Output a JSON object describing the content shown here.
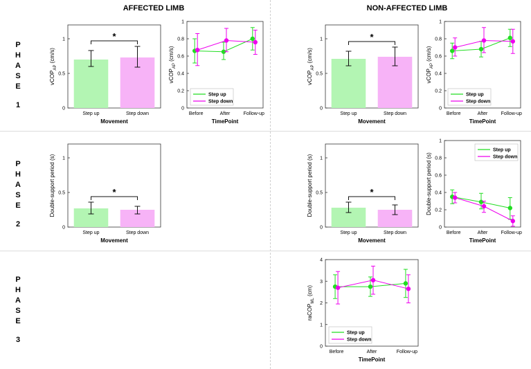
{
  "headers": {
    "affected": "AFFECTED LIMB",
    "non_affected": "NON-AFFECTED LIMB"
  },
  "phases": [
    {
      "letters": [
        "P",
        "H",
        "A",
        "S",
        "E"
      ],
      "number": "1"
    },
    {
      "letters": [
        "P",
        "H",
        "A",
        "S",
        "E"
      ],
      "number": "2"
    },
    {
      "letters": [
        "P",
        "H",
        "A",
        "S",
        "E"
      ],
      "number": "3"
    }
  ],
  "colors": {
    "green": "#22dd22",
    "magenta": "#ee00ee",
    "bar_green": "#b3f5b3",
    "bar_pink": "#f7b3f7"
  },
  "chart_data": [
    {
      "id": "p1-affected-bar",
      "type": "bar",
      "categories": [
        "Step up",
        "Step down"
      ],
      "values": [
        0.7,
        0.73
      ],
      "err_low": [
        0.6,
        0.59
      ],
      "err_high": [
        0.83,
        0.89
      ],
      "xlabel": "Movement",
      "ylabel_main": "vCOP",
      "ylabel_sub": "AP",
      "ylabel_unit": " (cm/s)",
      "ylim": [
        0,
        1.2
      ],
      "yticks": [
        "0",
        "0.5",
        "1"
      ],
      "significance": "*"
    },
    {
      "id": "p1-affected-line",
      "type": "line",
      "categories": [
        "Before",
        "After",
        "Follow-up"
      ],
      "series": [
        {
          "name": "Step up",
          "values": [
            0.66,
            0.65,
            0.8
          ],
          "err_low": [
            0.52,
            0.56,
            0.67
          ],
          "err_high": [
            0.8,
            0.76,
            0.93
          ]
        },
        {
          "name": "Step down",
          "values": [
            0.67,
            0.78,
            0.76
          ],
          "err_low": [
            0.49,
            0.65,
            0.62
          ],
          "err_high": [
            0.86,
            0.92,
            0.9
          ]
        }
      ],
      "xlabel": "TimePoint",
      "ylabel_main": "vCOP",
      "ylabel_sub": "AP",
      "ylabel_unit": " (cm/s)",
      "ylim": [
        0,
        1
      ],
      "yticks": [
        "0",
        "0.2",
        "0.4",
        "0.6",
        "0.8",
        "1"
      ],
      "legend": "bottom-left"
    },
    {
      "id": "p1-nonaffected-bar",
      "type": "bar",
      "categories": [
        "Step up",
        "Step down"
      ],
      "values": [
        0.71,
        0.74
      ],
      "err_low": [
        0.61,
        0.61
      ],
      "err_high": [
        0.82,
        0.88
      ],
      "xlabel": "Movement",
      "ylabel_main": "vCOP",
      "ylabel_sub": "AP",
      "ylabel_unit": " (cm/s)",
      "ylim": [
        0,
        1.2
      ],
      "yticks": [
        "0",
        "0.5",
        "1"
      ],
      "significance": "*"
    },
    {
      "id": "p1-nonaffected-line",
      "type": "line",
      "categories": [
        "Before",
        "After",
        "Follow-up"
      ],
      "series": [
        {
          "name": "Step up",
          "values": [
            0.66,
            0.68,
            0.81
          ],
          "err_low": [
            0.57,
            0.59,
            0.71
          ],
          "err_high": [
            0.75,
            0.77,
            0.91
          ]
        },
        {
          "name": "Step down",
          "values": [
            0.7,
            0.78,
            0.77
          ],
          "err_low": [
            0.6,
            0.64,
            0.63
          ],
          "err_high": [
            0.81,
            0.93,
            0.91
          ]
        }
      ],
      "xlabel": "TimePoint",
      "ylabel_main": "vCOP",
      "ylabel_sub": "AP",
      "ylabel_unit": " (cm/s)",
      "ylim": [
        0,
        1
      ],
      "yticks": [
        "0",
        "0.2",
        "0.4",
        "0.6",
        "0.8",
        "1"
      ],
      "legend": "bottom-left"
    },
    {
      "id": "p2-affected-bar",
      "type": "bar",
      "categories": [
        "Step up",
        "Step down"
      ],
      "values": [
        0.27,
        0.25
      ],
      "err_low": [
        0.19,
        0.19
      ],
      "err_high": [
        0.36,
        0.3
      ],
      "xlabel": "Movement",
      "ylabel_main": "Double-support period (s)",
      "ylabel_sub": "",
      "ylabel_unit": "",
      "ylim": [
        0,
        1.2
      ],
      "yticks": [
        "0",
        "0.5",
        "1"
      ],
      "significance": "*"
    },
    {
      "id": "p2-nonaffected-bar",
      "type": "bar",
      "categories": [
        "Step up",
        "Step down"
      ],
      "values": [
        0.28,
        0.25
      ],
      "err_low": [
        0.21,
        0.18
      ],
      "err_high": [
        0.36,
        0.32
      ],
      "xlabel": "Movement",
      "ylabel_main": "Double-support period (s)",
      "ylabel_sub": "",
      "ylabel_unit": "",
      "ylim": [
        0,
        1.2
      ],
      "yticks": [
        "0",
        "0.5",
        "1"
      ],
      "significance": "*"
    },
    {
      "id": "p2-nonaffected-line",
      "type": "line",
      "categories": [
        "Before",
        "After",
        "Follow-up"
      ],
      "series": [
        {
          "name": "Step up",
          "values": [
            0.35,
            0.29,
            0.22
          ],
          "err_low": [
            0.27,
            0.21,
            0.09
          ],
          "err_high": [
            0.43,
            0.39,
            0.34
          ]
        },
        {
          "name": "Step down",
          "values": [
            0.34,
            0.24,
            0.07
          ],
          "err_low": [
            0.28,
            0.17,
            0.01
          ],
          "err_high": [
            0.4,
            0.3,
            0.13
          ]
        }
      ],
      "xlabel": "TimePoint",
      "ylabel_main": "Double-support period (s)",
      "ylabel_sub": "",
      "ylabel_unit": "",
      "ylim": [
        0,
        1
      ],
      "yticks": [
        "0",
        "0.2",
        "0.4",
        "0.6",
        "0.8",
        "1"
      ],
      "legend": "top-right"
    },
    {
      "id": "p3-nonaffected-line",
      "type": "line",
      "categories": [
        "Before",
        "After",
        "Follow-up"
      ],
      "series": [
        {
          "name": "Step up",
          "values": [
            2.75,
            2.75,
            2.9
          ],
          "err_low": [
            2.2,
            2.3,
            2.25
          ],
          "err_high": [
            3.3,
            3.2,
            3.55
          ]
        },
        {
          "name": "Step down",
          "values": [
            2.7,
            3.05,
            2.65
          ],
          "err_low": [
            1.95,
            2.4,
            2.0
          ],
          "err_high": [
            3.45,
            3.7,
            3.3
          ]
        }
      ],
      "xlabel": "TimePoint",
      "ylabel_main": "raCOP",
      "ylabel_sub": "ML",
      "ylabel_unit": " (cm)",
      "ylim": [
        0,
        4
      ],
      "yticks": [
        "0",
        "1",
        "2",
        "3",
        "4"
      ],
      "legend": "bottom-left"
    }
  ]
}
